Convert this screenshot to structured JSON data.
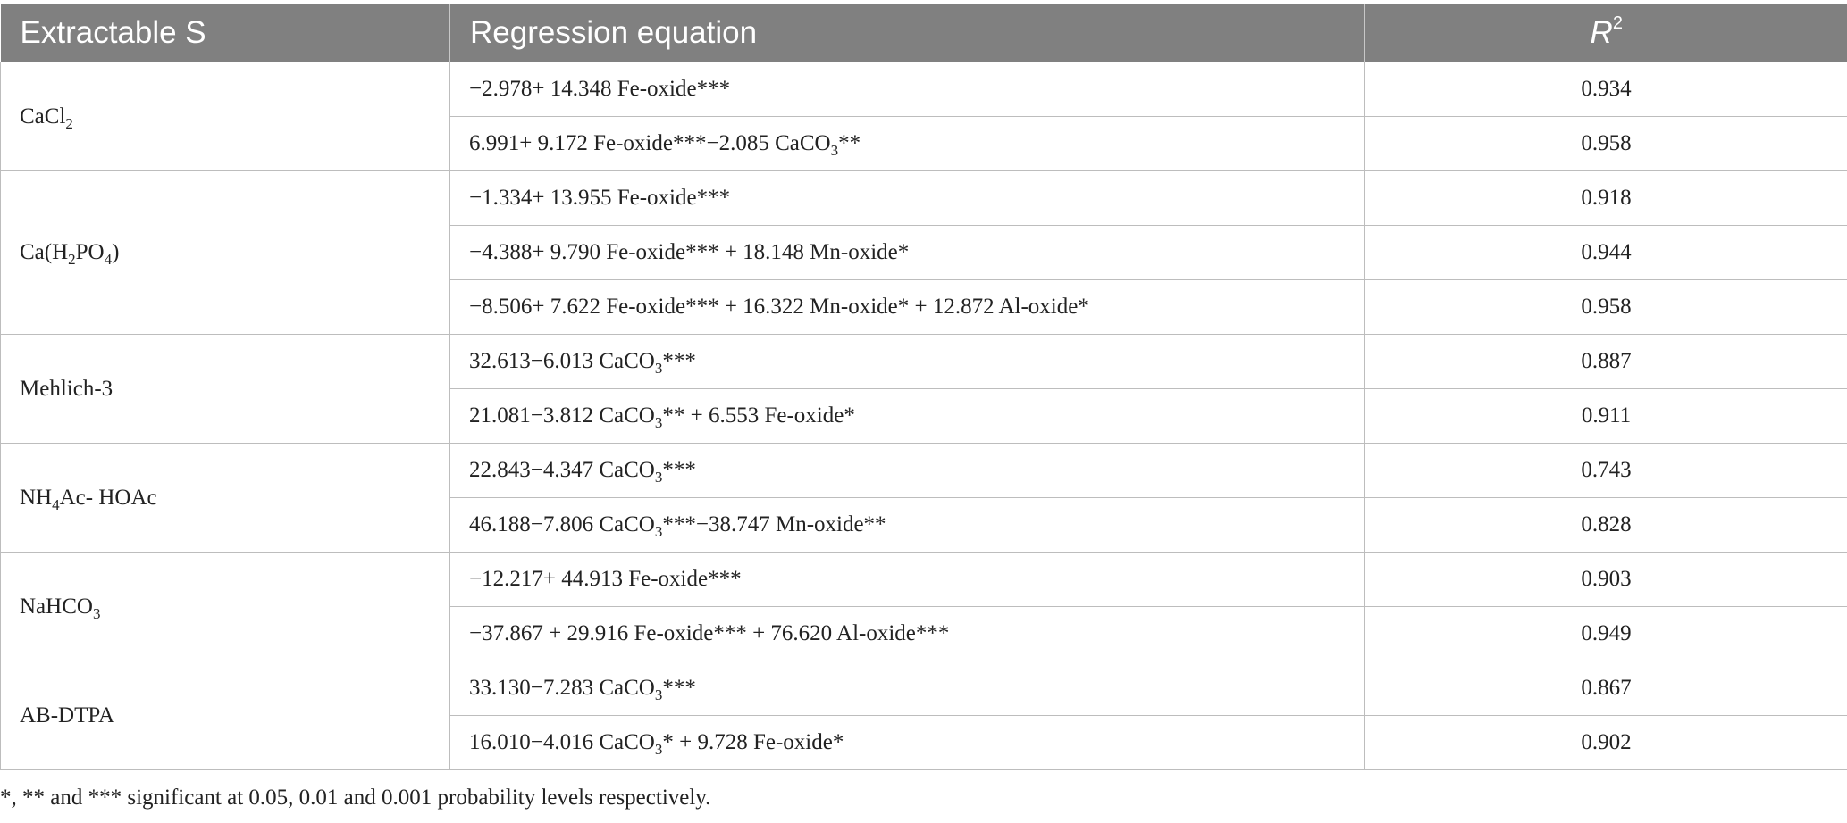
{
  "table": {
    "headers": {
      "extractable": "Extractable S",
      "equation": "Regression equation",
      "r2_symbol": "R",
      "r2_sup": "2"
    },
    "groups": [
      {
        "label_parts": [
          "CaCl",
          "2",
          ""
        ],
        "rows": [
          {
            "eq_parts": [
              "−2.978+ 14.348 Fe-oxide***"
            ],
            "r2": "0.934"
          },
          {
            "eq_parts": [
              "6.991+ 9.172 Fe-oxide***−2.085 CaCO",
              "3",
              "**"
            ],
            "r2": "0.958"
          }
        ]
      },
      {
        "label_parts": [
          "Ca(H",
          "2",
          "PO",
          "4",
          ")"
        ],
        "rows": [
          {
            "eq_parts": [
              "−1.334+ 13.955 Fe-oxide***"
            ],
            "r2": "0.918"
          },
          {
            "eq_parts": [
              "−4.388+ 9.790 Fe-oxide*** + 18.148 Mn-oxide*"
            ],
            "r2": "0.944"
          },
          {
            "eq_parts": [
              "−8.506+ 7.622 Fe-oxide*** + 16.322 Mn-oxide* + 12.872 Al-oxide*"
            ],
            "r2": "0.958"
          }
        ]
      },
      {
        "label_parts": [
          "Mehlich-3"
        ],
        "rows": [
          {
            "eq_parts": [
              "32.613−6.013 CaCO",
              "3",
              "***"
            ],
            "r2": "0.887"
          },
          {
            "eq_parts": [
              "21.081−3.812 CaCO",
              "3",
              "** + 6.553 Fe-oxide*"
            ],
            "r2": "0.911"
          }
        ]
      },
      {
        "label_parts": [
          "NH",
          "4",
          "Ac- HOAc"
        ],
        "rows": [
          {
            "eq_parts": [
              "22.843−4.347 CaCO",
              "3",
              "***"
            ],
            "r2": "0.743"
          },
          {
            "eq_parts": [
              "46.188−7.806 CaCO",
              "3",
              "***−38.747 Mn-oxide**"
            ],
            "r2": "0.828"
          }
        ]
      },
      {
        "label_parts": [
          "NaHCO",
          "3",
          ""
        ],
        "rows": [
          {
            "eq_parts": [
              "−12.217+ 44.913 Fe-oxide***"
            ],
            "r2": "0.903"
          },
          {
            "eq_parts": [
              "−37.867 + 29.916 Fe-oxide*** + 76.620 Al-oxide***"
            ],
            "r2": "0.949"
          }
        ]
      },
      {
        "label_parts": [
          "AB-DTPA"
        ],
        "rows": [
          {
            "eq_parts": [
              "33.130−7.283 CaCO",
              "3",
              "***"
            ],
            "r2": "0.867"
          },
          {
            "eq_parts": [
              "16.010−4.016 CaCO",
              "3",
              "* + 9.728 Fe-oxide*"
            ],
            "r2": "0.902"
          }
        ]
      }
    ]
  },
  "footnote": "*, ** and *** significant at 0.05, 0.01 and 0.001 probability levels respectively."
}
